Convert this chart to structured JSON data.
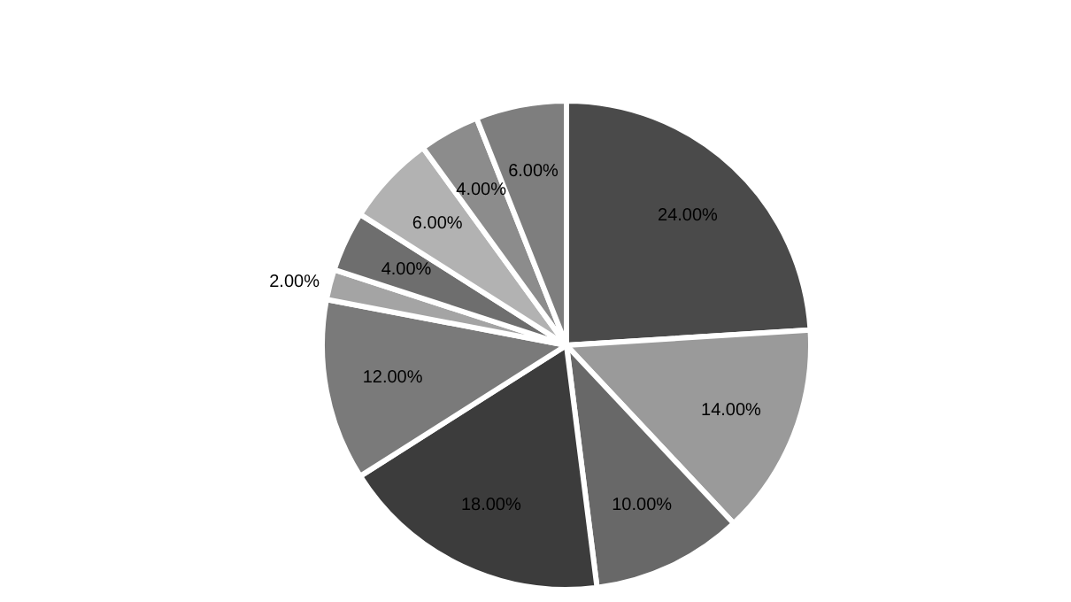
{
  "chart_data": {
    "type": "pie",
    "categories": [
      null,
      null,
      null,
      null,
      null,
      null,
      null,
      null,
      null,
      null
    ],
    "values": [
      24,
      14,
      10,
      18,
      12,
      2,
      4,
      6,
      4,
      6
    ],
    "value_labels": [
      "24.00%",
      "14.00%",
      "10.00%",
      "18.00%",
      "12.00%",
      "2.00%",
      "4.00%",
      "6.00%",
      "4.00%",
      "6.00%"
    ],
    "colors": [
      "#4a4a4a",
      "#9a9a9a",
      "#686868",
      "#3c3c3c",
      "#7a7a7a",
      "#a4a4a4",
      "#6e6e6e",
      "#b2b2b2",
      "#8c8c8c",
      "#7e7e7e"
    ]
  }
}
